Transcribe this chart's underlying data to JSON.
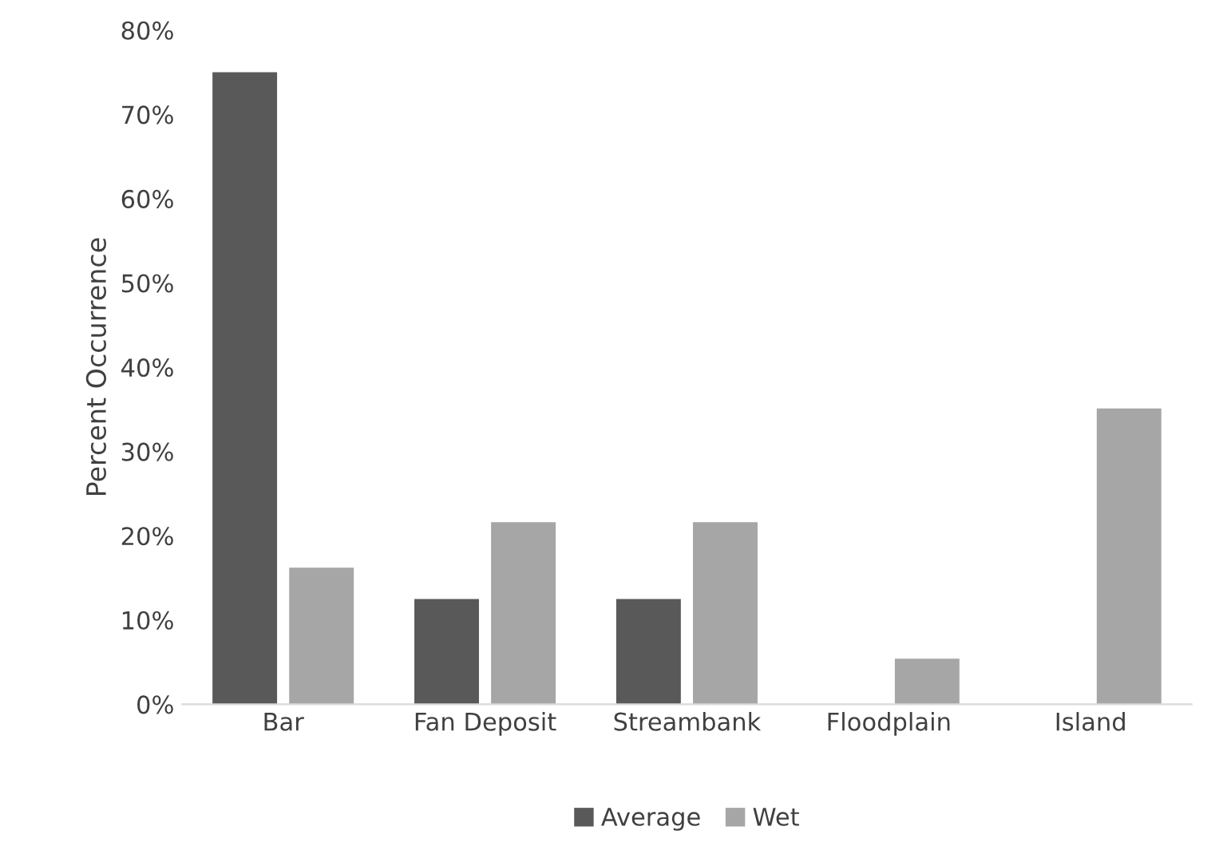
{
  "chart_data": {
    "type": "bar",
    "ylabel": "Percent Occurrence",
    "categories": [
      "Bar",
      "Fan Deposit",
      "Streambank",
      "Floodplain",
      "Island"
    ],
    "series": [
      {
        "name": "Average",
        "color": "#595959",
        "values": [
          75,
          12.5,
          12.5,
          0,
          0
        ]
      },
      {
        "name": "Wet",
        "color": "#a6a6a6",
        "values": [
          16.2,
          21.6,
          21.6,
          5.4,
          35.1
        ]
      }
    ],
    "ylim": [
      0,
      80
    ],
    "yticks": [
      {
        "value": 0,
        "label": "0%"
      },
      {
        "value": 10,
        "label": "10%"
      },
      {
        "value": 20,
        "label": "20%"
      },
      {
        "value": 30,
        "label": "30%"
      },
      {
        "value": 40,
        "label": "40%"
      },
      {
        "value": 50,
        "label": "50%"
      },
      {
        "value": 60,
        "label": "60%"
      },
      {
        "value": 70,
        "label": "70%"
      },
      {
        "value": 80,
        "label": "80%"
      }
    ],
    "grid": false,
    "legend": "bottom"
  }
}
